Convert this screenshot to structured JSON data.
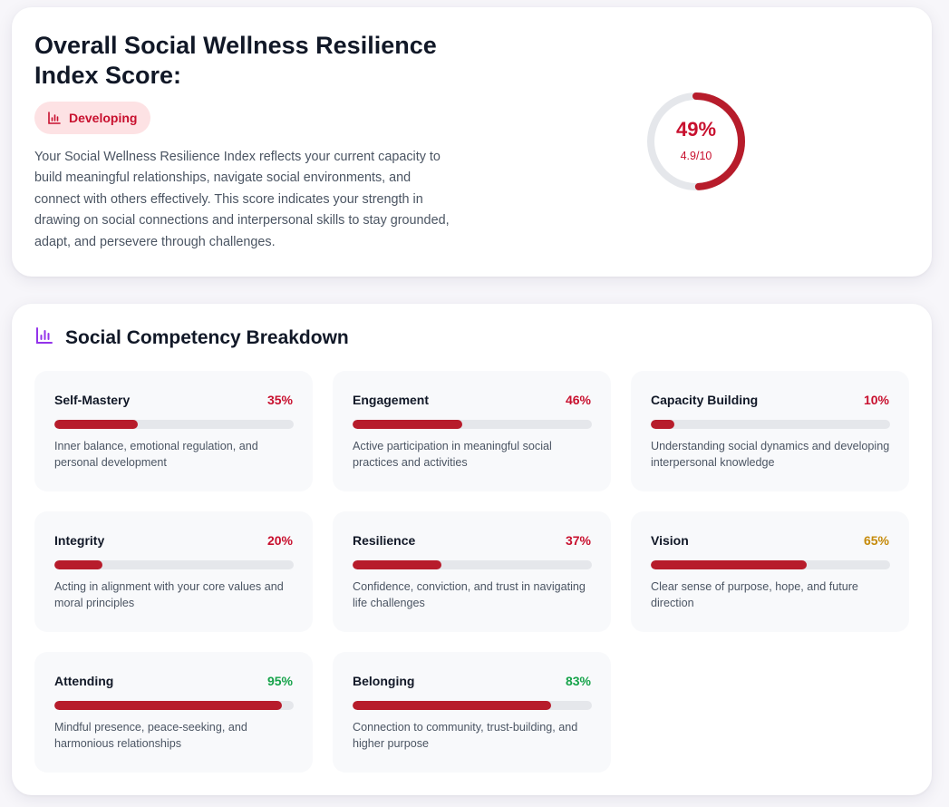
{
  "overall": {
    "title": "Overall Social Wellness Resilience Index Score:",
    "badge": {
      "label": "Developing",
      "icon": "bar-chart-icon",
      "color": "#c8102e"
    },
    "description": "Your Social Wellness Resilience Index reflects your current capacity to build meaningful relationships, navigate social environments, and connect with others effectively. This score indicates your strength in drawing on social connections and interpersonal skills to stay grounded, adapt, and persevere through challenges.",
    "gauge": {
      "percent_label": "49%",
      "score_label": "4.9/10",
      "value": 0.49,
      "color": "#b71c2b",
      "track_color": "#e5e7eb"
    }
  },
  "breakdown": {
    "title": "Social Competency Breakdown",
    "icon": "bar-chart-icon",
    "icon_color": "#9333ea",
    "items": [
      {
        "name": "Self-Mastery",
        "pct_label": "35%",
        "value": 35,
        "pct_color": "#c8102e",
        "desc": "Inner balance, emotional regulation, and personal development"
      },
      {
        "name": "Engagement",
        "pct_label": "46%",
        "value": 46,
        "pct_color": "#c8102e",
        "desc": "Active participation in meaningful social practices and activities"
      },
      {
        "name": "Capacity Building",
        "pct_label": "10%",
        "value": 10,
        "pct_color": "#c8102e",
        "desc": "Understanding social dynamics and developing interpersonal knowledge"
      },
      {
        "name": "Integrity",
        "pct_label": "20%",
        "value": 20,
        "pct_color": "#c8102e",
        "desc": "Acting in alignment with your core values and moral principles"
      },
      {
        "name": "Resilience",
        "pct_label": "37%",
        "value": 37,
        "pct_color": "#c8102e",
        "desc": "Confidence, conviction, and trust in navigating life challenges"
      },
      {
        "name": "Vision",
        "pct_label": "65%",
        "value": 65,
        "pct_color": "#c58a09",
        "desc": "Clear sense of purpose, hope, and future direction"
      },
      {
        "name": "Attending",
        "pct_label": "95%",
        "value": 95,
        "pct_color": "#16a34a",
        "desc": "Mindful presence, peace-seeking, and harmonious relationships"
      },
      {
        "name": "Belonging",
        "pct_label": "83%",
        "value": 83,
        "pct_color": "#16a34a",
        "desc": "Connection to community, trust-building, and higher purpose"
      }
    ]
  }
}
